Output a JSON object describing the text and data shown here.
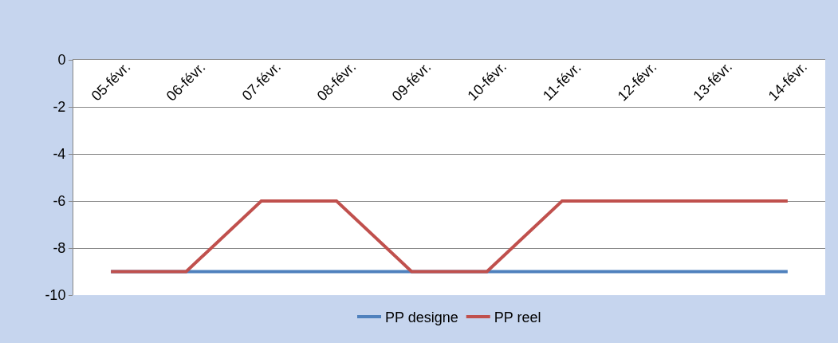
{
  "chart_data": {
    "type": "line",
    "categories": [
      "05-févr.",
      "06-févr.",
      "07-févr.",
      "08-févr.",
      "09-févr.",
      "10-févr.",
      "11-févr.",
      "12-févr.",
      "13-févr.",
      "14-févr."
    ],
    "series": [
      {
        "name": "PP designe",
        "color": "#4f81bd",
        "values": [
          -9,
          -9,
          -9,
          -9,
          -9,
          -9,
          -9,
          -9,
          -9,
          -9
        ]
      },
      {
        "name": "PP reel",
        "color": "#c0504d",
        "values": [
          -9,
          -9,
          -6,
          -6,
          -9,
          -9,
          -6,
          -6,
          -6,
          -6
        ]
      }
    ],
    "ylim": [
      -10,
      0
    ],
    "yticks": [
      -10,
      -8,
      -6,
      -4,
      -2,
      0
    ],
    "grid": "y",
    "legend": "bottom",
    "marker": "none",
    "line_style": "solid"
  }
}
